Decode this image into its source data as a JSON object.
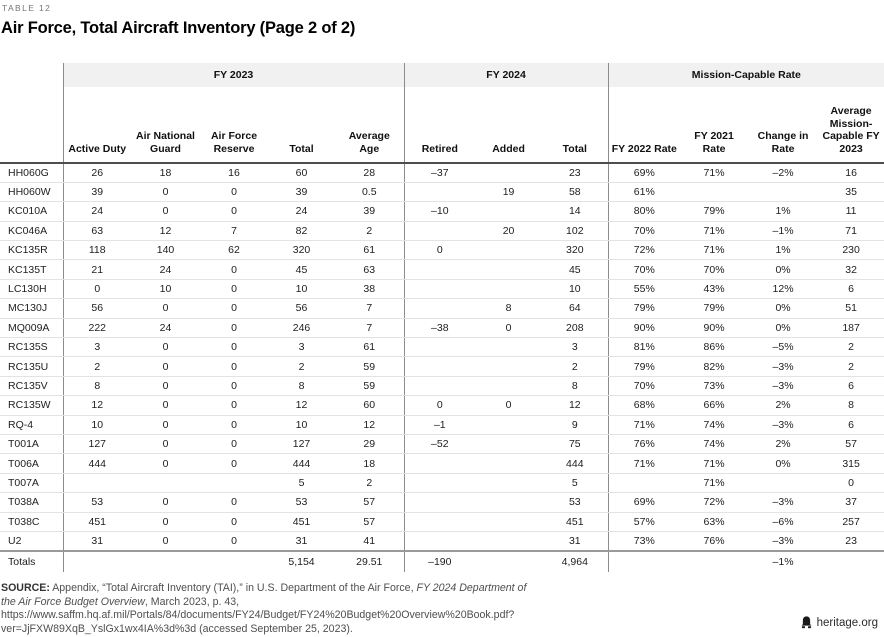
{
  "header": {
    "eyebrow": "TABLE 12",
    "title": "Air Force, Total Aircraft Inventory (Page 2 of 2)"
  },
  "colors": {
    "group_band": "#f1f1f1",
    "divider": "#8c8c8c",
    "header_rule": "#4d4d4d",
    "row_rule": "#e3e3e3",
    "totals_rule": "#999999",
    "text": "#1a1a1a"
  },
  "chart_data": {
    "type": "table",
    "title": "Air Force, Total Aircraft Inventory (Page 2 of 2)",
    "groups": [
      {
        "label": "",
        "span": 1
      },
      {
        "label": "FY 2023",
        "span": 5
      },
      {
        "label": "FY 2024",
        "span": 3
      },
      {
        "label": "Mission-Capable Rate",
        "span": 4
      }
    ],
    "columns": [
      "",
      "Active Duty",
      "Air National Guard",
      "Air Force Reserve",
      "Total",
      "Average Age",
      "Retired",
      "Added",
      "Total",
      "FY 2022 Rate",
      "FY 2021 Rate",
      "Change in Rate",
      "Average Mission-Capable FY 2023"
    ],
    "rows": [
      {
        "label": "HH060G",
        "values": [
          "26",
          "18",
          "16",
          "60",
          "28",
          "–37",
          "",
          "23",
          "69%",
          "71%",
          "–2%",
          "16"
        ]
      },
      {
        "label": "HH060W",
        "values": [
          "39",
          "0",
          "0",
          "39",
          "0.5",
          "",
          "19",
          "58",
          "61%",
          "",
          "",
          "35"
        ]
      },
      {
        "label": "KC010A",
        "values": [
          "24",
          "0",
          "0",
          "24",
          "39",
          "–10",
          "",
          "14",
          "80%",
          "79%",
          "1%",
          "11"
        ]
      },
      {
        "label": "KC046A",
        "values": [
          "63",
          "12",
          "7",
          "82",
          "2",
          "",
          "20",
          "102",
          "70%",
          "71%",
          "–1%",
          "71"
        ]
      },
      {
        "label": "KC135R",
        "values": [
          "118",
          "140",
          "62",
          "320",
          "61",
          "0",
          "",
          "320",
          "72%",
          "71%",
          "1%",
          "230"
        ]
      },
      {
        "label": "KC135T",
        "values": [
          "21",
          "24",
          "0",
          "45",
          "63",
          "",
          "",
          "45",
          "70%",
          "70%",
          "0%",
          "32"
        ]
      },
      {
        "label": "LC130H",
        "values": [
          "0",
          "10",
          "0",
          "10",
          "38",
          "",
          "",
          "10",
          "55%",
          "43%",
          "12%",
          "6"
        ]
      },
      {
        "label": "MC130J",
        "values": [
          "56",
          "0",
          "0",
          "56",
          "7",
          "",
          "8",
          "64",
          "79%",
          "79%",
          "0%",
          "51"
        ]
      },
      {
        "label": "MQ009A",
        "values": [
          "222",
          "24",
          "0",
          "246",
          "7",
          "–38",
          "0",
          "208",
          "90%",
          "90%",
          "0%",
          "187"
        ]
      },
      {
        "label": "RC135S",
        "values": [
          "3",
          "0",
          "0",
          "3",
          "61",
          "",
          "",
          "3",
          "81%",
          "86%",
          "–5%",
          "2"
        ]
      },
      {
        "label": "RC135U",
        "values": [
          "2",
          "0",
          "0",
          "2",
          "59",
          "",
          "",
          "2",
          "79%",
          "82%",
          "–3%",
          "2"
        ]
      },
      {
        "label": "RC135V",
        "values": [
          "8",
          "0",
          "0",
          "8",
          "59",
          "",
          "",
          "8",
          "70%",
          "73%",
          "–3%",
          "6"
        ]
      },
      {
        "label": "RC135W",
        "values": [
          "12",
          "0",
          "0",
          "12",
          "60",
          "0",
          "0",
          "12",
          "68%",
          "66%",
          "2%",
          "8"
        ]
      },
      {
        "label": "RQ-4",
        "values": [
          "10",
          "0",
          "0",
          "10",
          "12",
          "–1",
          "",
          "9",
          "71%",
          "74%",
          "–3%",
          "6"
        ]
      },
      {
        "label": "T001A",
        "values": [
          "127",
          "0",
          "0",
          "127",
          "29",
          "–52",
          "",
          "75",
          "76%",
          "74%",
          "2%",
          "57"
        ]
      },
      {
        "label": "T006A",
        "values": [
          "444",
          "0",
          "0",
          "444",
          "18",
          "",
          "",
          "444",
          "71%",
          "71%",
          "0%",
          "315"
        ]
      },
      {
        "label": "T007A",
        "values": [
          "",
          "",
          "",
          "5",
          "2",
          "",
          "",
          "5",
          "",
          "71%",
          "",
          "0"
        ]
      },
      {
        "label": "T038A",
        "values": [
          "53",
          "0",
          "0",
          "53",
          "57",
          "",
          "",
          "53",
          "69%",
          "72%",
          "–3%",
          "37"
        ]
      },
      {
        "label": "T038C",
        "values": [
          "451",
          "0",
          "0",
          "451",
          "57",
          "",
          "",
          "451",
          "57%",
          "63%",
          "–6%",
          "257"
        ]
      },
      {
        "label": "U2",
        "values": [
          "31",
          "0",
          "0",
          "31",
          "41",
          "",
          "",
          "31",
          "73%",
          "76%",
          "–3%",
          "23"
        ]
      }
    ],
    "totals": {
      "label": "Totals",
      "values": [
        "",
        "",
        "",
        "5,154",
        "29.51",
        "–190",
        "",
        "4,964",
        "",
        "",
        "–1%",
        ""
      ]
    }
  },
  "footer": {
    "source_label": "SOURCE:",
    "source_before": " Appendix, “Total Aircraft Inventory (TAI),” in U.S. Department of the Air Force, ",
    "source_italic": "FY 2024 Department of the Air Force Budget Overview",
    "source_after": ", March 2023, p. 43, https://www.saffm.hq.af.mil/Portals/84/documents/FY24/Budget/FY24%20Budget%20Overview%20Book.pdf?ver=JjFXW89XqB_YslGx1wx4IA%3d%3d (accessed September 25, 2023).",
    "brand": "heritage.org",
    "brand_icon": "liberty-bell-icon"
  }
}
